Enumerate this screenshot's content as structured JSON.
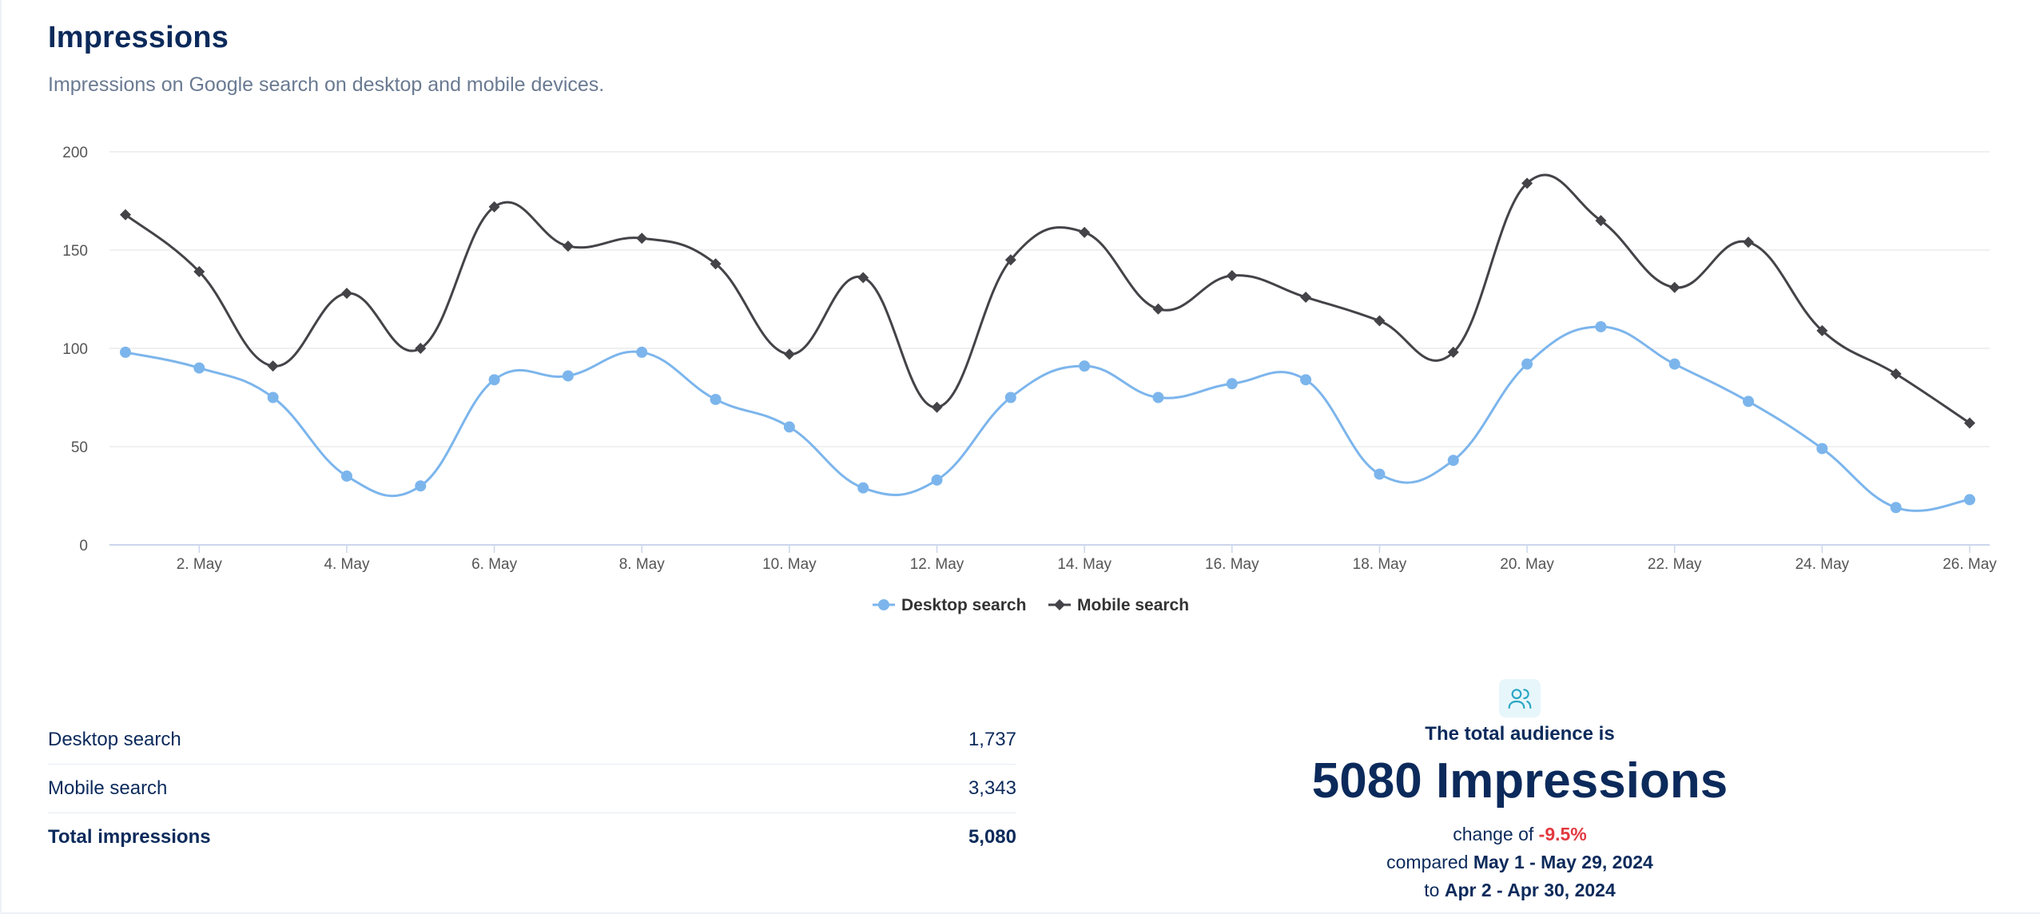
{
  "header": {
    "title": "Impressions",
    "subtitle": "Impressions on Google search on desktop and mobile devices."
  },
  "chart_data": {
    "type": "line",
    "x": [
      "1. May",
      "2. May",
      "3. May",
      "4. May",
      "5. May",
      "6. May",
      "7. May",
      "8. May",
      "9. May",
      "10. May",
      "11. May",
      "12. May",
      "13. May",
      "14. May",
      "15. May",
      "16. May",
      "17. May",
      "18. May",
      "19. May",
      "20. May",
      "21. May",
      "22. May",
      "23. May",
      "24. May",
      "25. May",
      "26. May"
    ],
    "x_tick_labels": [
      "2. May",
      "4. May",
      "6. May",
      "8. May",
      "10. May",
      "12. May",
      "14. May",
      "16. May",
      "18. May",
      "20. May",
      "22. May",
      "24. May",
      "26. May"
    ],
    "y_ticks": [
      0,
      50,
      100,
      150,
      200
    ],
    "ylim": [
      0,
      200
    ],
    "grid": true,
    "legend_position": "bottom-center",
    "series": [
      {
        "name": "Desktop search",
        "color": "#7cb5ec",
        "marker": "circle",
        "values": [
          98,
          90,
          75,
          35,
          30,
          84,
          86,
          98,
          74,
          60,
          29,
          33,
          75,
          91,
          75,
          82,
          84,
          36,
          43,
          92,
          111,
          92,
          73,
          49,
          19,
          23
        ]
      },
      {
        "name": "Mobile search",
        "color": "#434348",
        "marker": "diamond",
        "values": [
          168,
          139,
          91,
          128,
          100,
          172,
          152,
          156,
          143,
          97,
          136,
          70,
          145,
          159,
          120,
          137,
          126,
          114,
          98,
          184,
          165,
          131,
          154,
          109,
          87,
          62
        ]
      }
    ]
  },
  "stats": {
    "rows": [
      {
        "label": "Desktop search",
        "value": "1,737"
      },
      {
        "label": "Mobile search",
        "value": "3,343"
      },
      {
        "label": "Total impressions",
        "value": "5,080"
      }
    ]
  },
  "summary": {
    "icon": "users-icon",
    "label": "The total audience is",
    "big": "5080 Impressions",
    "change_prefix": "change of ",
    "change_value": "-9.5%",
    "change_color": "#e2393f",
    "compared_prefix": "compared ",
    "compared_range": "May 1 - May 29, 2024",
    "to_prefix": "to ",
    "to_range": "Apr 2 - Apr 30, 2024"
  }
}
